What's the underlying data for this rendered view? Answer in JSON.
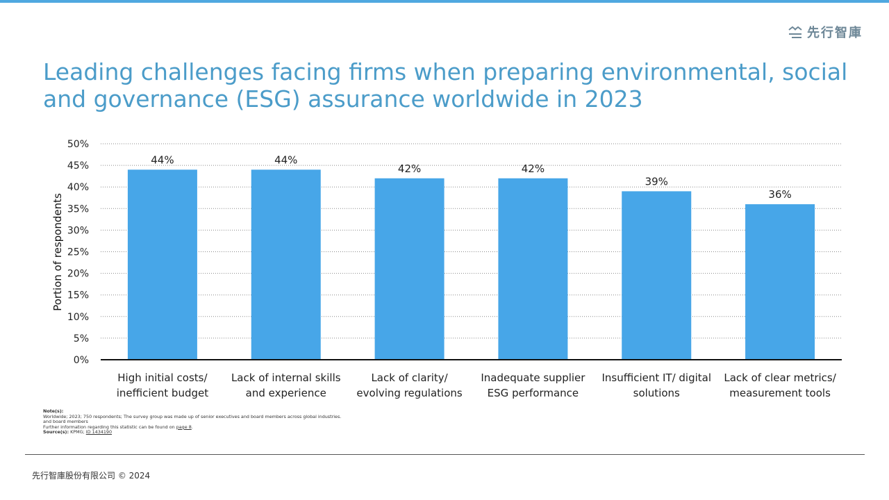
{
  "brand": {
    "logo_text": "先行智庫",
    "accent_color": "#4fa8e0"
  },
  "title": "Leading challenges facing firms when preparing environmental, social and governance (ESG) assurance worldwide in 2023",
  "chart_data": {
    "type": "bar",
    "categories": [
      [
        "High initial costs/",
        "inefficient budget"
      ],
      [
        "Lack of internal skills",
        "and experience"
      ],
      [
        "Lack of clarity/",
        "evolving regulations"
      ],
      [
        "Inadequate supplier",
        "ESG performance"
      ],
      [
        "Insufficient IT/ digital",
        "solutions"
      ],
      [
        "Lack of clear metrics/",
        "measurement tools"
      ]
    ],
    "values": [
      44,
      44,
      42,
      42,
      39,
      36
    ],
    "data_labels": [
      "44%",
      "44%",
      "42%",
      "42%",
      "39%",
      "36%"
    ],
    "ylabel": "Portion of respondents",
    "ylim": [
      0,
      50
    ],
    "yticks": [
      0,
      5,
      10,
      15,
      20,
      25,
      30,
      35,
      40,
      45,
      50
    ],
    "ytick_labels": [
      "0%",
      "5%",
      "10%",
      "15%",
      "20%",
      "25%",
      "30%",
      "35%",
      "40%",
      "45%",
      "50%"
    ],
    "grid": "horizontal dotted",
    "bar_color": "#47a6e8"
  },
  "notes": {
    "notes_label": "Note(s):",
    "notes_line1": " Worldwide; 2023; 750 respondents; The survey group was made up of senior executives and board members across global industries.",
    "notes_line2": "and board members",
    "further_text": "Further information regarding this statistic can be found on ",
    "further_link": "page 8",
    "further_end": ".",
    "source_label": "Source(s):",
    "source_text": " KPMG; ",
    "source_link": "ID 1434190"
  },
  "footer": {
    "copyright": "先行智庫股份有限公司  © 2024"
  }
}
